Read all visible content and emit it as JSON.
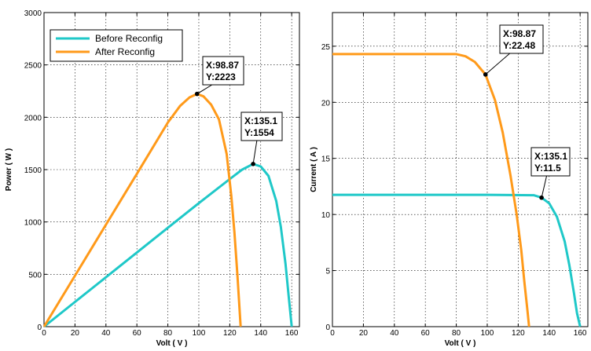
{
  "chart_data": [
    {
      "type": "line",
      "xlabel": "Volt ( V )",
      "ylabel": "Power ( W )",
      "xlim": [
        0,
        165
      ],
      "ylim": [
        0,
        3000
      ],
      "xticks": [
        0,
        20,
        40,
        60,
        80,
        100,
        120,
        140,
        160
      ],
      "yticks": [
        0,
        500,
        1000,
        1500,
        2000,
        2500,
        3000
      ],
      "grid": true,
      "legend_position": "top-left",
      "series": [
        {
          "name": "Before Reconfig",
          "color": "#1fc8c8",
          "points": [
            [
              0,
              0
            ],
            [
              20,
              236
            ],
            [
              40,
              472
            ],
            [
              60,
              708
            ],
            [
              80,
              944
            ],
            [
              100,
              1180
            ],
            [
              120,
              1410
            ],
            [
              128,
              1500
            ],
            [
              135.1,
              1554
            ],
            [
              140,
              1530
            ],
            [
              145,
              1440
            ],
            [
              150,
              1200
            ],
            [
              153,
              950
            ],
            [
              156,
              600
            ],
            [
              158,
              300
            ],
            [
              160,
              0
            ]
          ]
        },
        {
          "name": "After Reconfig",
          "color": "#ff9a1a",
          "points": [
            [
              0,
              0
            ],
            [
              20,
              487
            ],
            [
              40,
              974
            ],
            [
              60,
              1460
            ],
            [
              80,
              1950
            ],
            [
              88,
              2110
            ],
            [
              94,
              2190
            ],
            [
              98.87,
              2223
            ],
            [
              103,
              2200
            ],
            [
              108,
              2120
            ],
            [
              113,
              1980
            ],
            [
              118,
              1650
            ],
            [
              121,
              1250
            ],
            [
              123,
              900
            ],
            [
              125,
              480
            ],
            [
              127,
              0
            ]
          ]
        }
      ],
      "annotations": [
        {
          "x_label": "X:98.87",
          "y_label": "Y:2223",
          "x": 98.87,
          "y": 2223
        },
        {
          "x_label": "X:135.1",
          "y_label": "Y:1554",
          "x": 135.1,
          "y": 1554
        }
      ]
    },
    {
      "type": "line",
      "xlabel": "Volt ( V )",
      "ylabel": "Current ( A )",
      "xlim": [
        0,
        165
      ],
      "ylim": [
        0,
        28
      ],
      "xticks": [
        0,
        20,
        40,
        60,
        80,
        100,
        120,
        140,
        160
      ],
      "yticks": [
        0,
        5,
        10,
        15,
        20,
        25
      ],
      "grid": true,
      "series": [
        {
          "name": "Before Reconfig",
          "color": "#1fc8c8",
          "points": [
            [
              0,
              11.75
            ],
            [
              100,
              11.75
            ],
            [
              130,
              11.72
            ],
            [
              135.1,
              11.5
            ],
            [
              140,
              11.0
            ],
            [
              145,
              9.8
            ],
            [
              150,
              7.6
            ],
            [
              153,
              5.5
            ],
            [
              156,
              3.0
            ],
            [
              158,
              1.2
            ],
            [
              160,
              0
            ]
          ]
        },
        {
          "name": "After Reconfig",
          "color": "#ff9a1a",
          "points": [
            [
              0,
              24.3
            ],
            [
              80,
              24.3
            ],
            [
              86,
              24.1
            ],
            [
              92,
              23.6
            ],
            [
              98.87,
              22.48
            ],
            [
              105,
              20.2
            ],
            [
              110,
              17.3
            ],
            [
              115,
              13.5
            ],
            [
              119,
              10.0
            ],
            [
              122,
              6.8
            ],
            [
              124,
              4.0
            ],
            [
              126,
              1.4
            ],
            [
              127,
              0
            ]
          ]
        }
      ],
      "annotations": [
        {
          "x_label": "X:98.87",
          "y_label": "Y:22.48",
          "x": 98.87,
          "y": 22.48
        },
        {
          "x_label": "X:135.1",
          "y_label": "Y:11.5",
          "x": 135.1,
          "y": 11.5
        }
      ]
    }
  ]
}
